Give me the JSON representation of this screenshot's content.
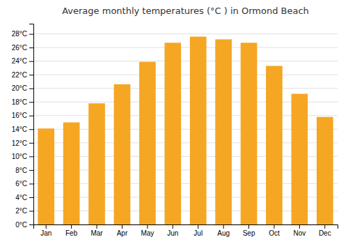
{
  "chart_data": {
    "type": "bar",
    "title": "Average monthly temperatures (°C ) in Ormond Beach",
    "categories": [
      "Jan",
      "Feb",
      "Mar",
      "Apr",
      "May",
      "Jun",
      "Jul",
      "Aug",
      "Sep",
      "Oct",
      "Nov",
      "Dec"
    ],
    "values": [
      14.1,
      15.0,
      17.8,
      20.6,
      23.9,
      26.7,
      27.6,
      27.2,
      26.7,
      23.3,
      19.2,
      15.8
    ],
    "color": "#F5A623",
    "ylim": [
      0,
      29.5
    ],
    "yticks": [
      {
        "value": 0,
        "label": "0°C"
      },
      {
        "value": 2,
        "label": "2°C"
      },
      {
        "value": 4,
        "label": "4°C"
      },
      {
        "value": 6,
        "label": "6°C"
      },
      {
        "value": 8,
        "label": "8°C"
      },
      {
        "value": 10,
        "label": "10°C"
      },
      {
        "value": 12,
        "label": "12°C"
      },
      {
        "value": 14,
        "label": "14°C"
      },
      {
        "value": 16,
        "label": "16°C"
      },
      {
        "value": 18,
        "label": "18°C"
      },
      {
        "value": 20,
        "label": "20°C"
      },
      {
        "value": 22,
        "label": "22°C"
      },
      {
        "value": 24,
        "label": "24°C"
      },
      {
        "value": 26,
        "label": "26°C"
      },
      {
        "value": 28,
        "label": "28°C"
      }
    ],
    "grid": true
  }
}
